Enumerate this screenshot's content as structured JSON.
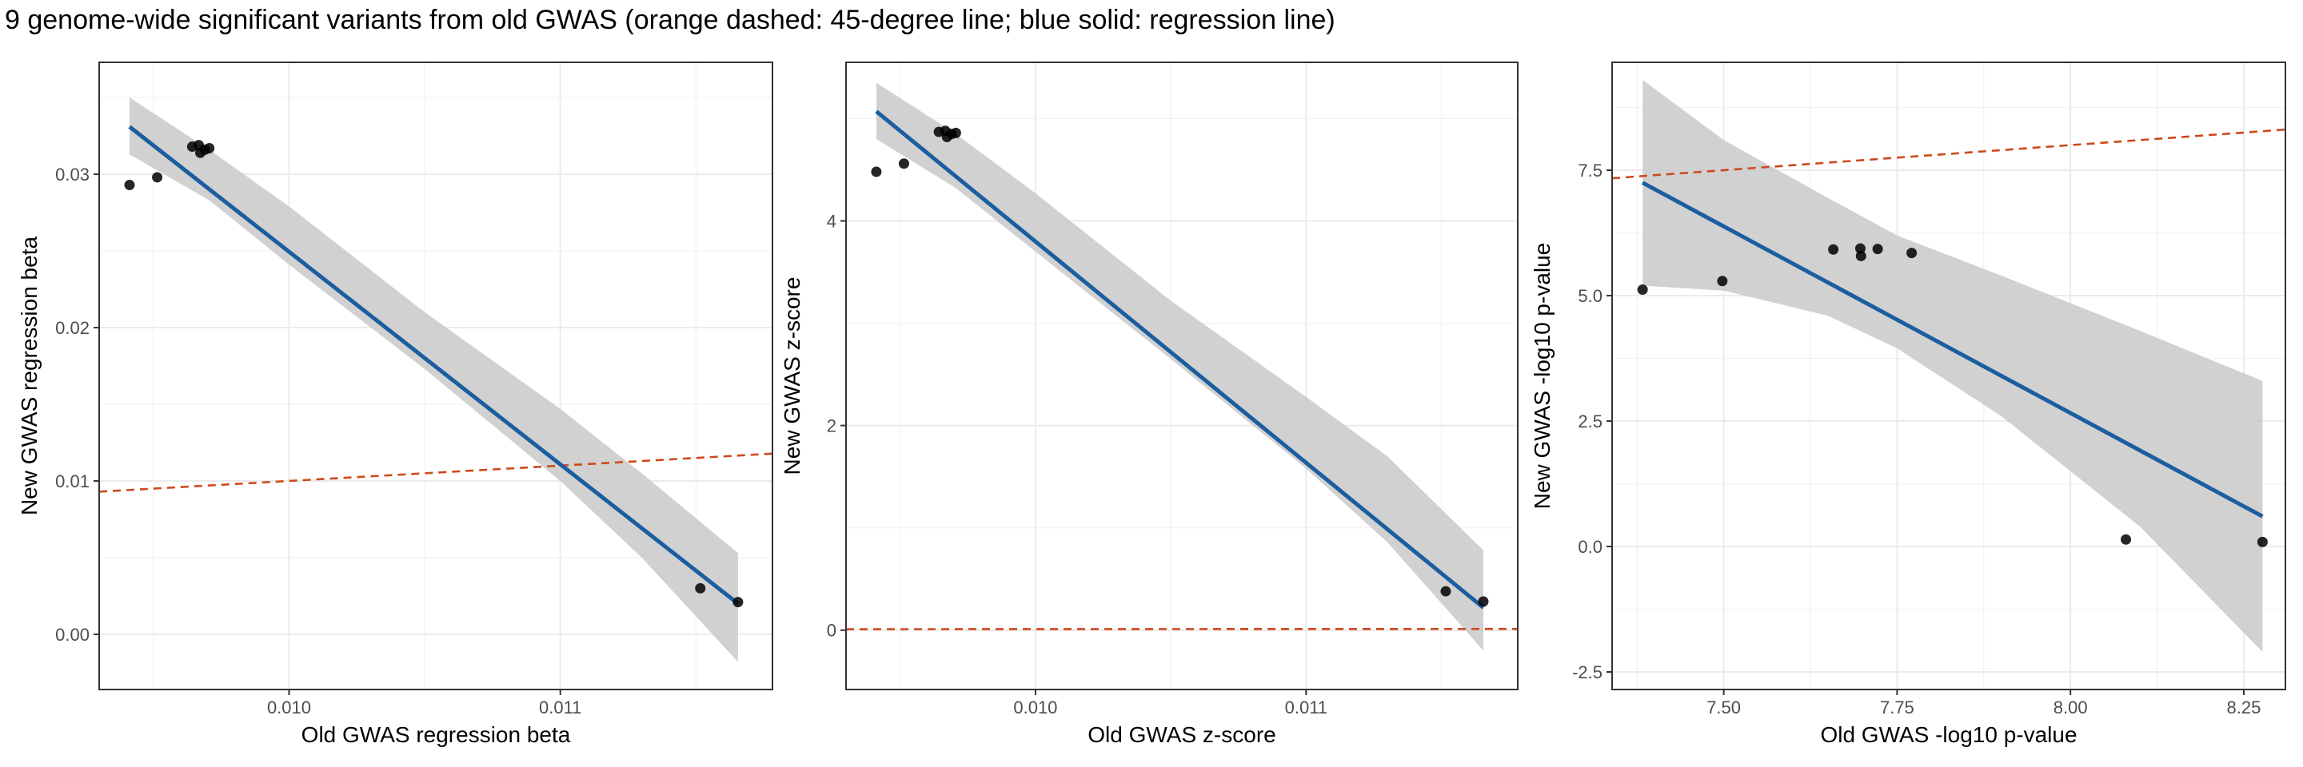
{
  "title": "9 genome-wide significant variants from old GWAS (orange dashed: 45-degree line; blue solid: regression line)",
  "colors": {
    "regression_line": "#1b5ea0",
    "identity_line": "#cc4a1a",
    "confidence_band": "#cccccc",
    "points": "#000000",
    "grid": "#ebebeb",
    "panel_border": "#333333"
  },
  "chart_data": [
    {
      "type": "scatter",
      "xlabel": "Old GWAS regression beta",
      "ylabel": "New GWAS regression beta",
      "xlim": [
        0.0093,
        0.011782
      ],
      "ylim": [
        -0.0036,
        0.0373
      ],
      "xticks": [
        0.01,
        0.011
      ],
      "xtick_labels": [
        "0.010",
        "0.011"
      ],
      "yticks": [
        0.0,
        0.01,
        0.02,
        0.03
      ],
      "ytick_labels": [
        "0.00",
        "0.01",
        "0.02",
        "0.03"
      ],
      "grid": true,
      "legend": "none",
      "points": [
        [
          0.009412,
          0.0293
        ],
        [
          0.009514,
          0.0298
        ],
        [
          0.009643,
          0.0318
        ],
        [
          0.009667,
          0.0319
        ],
        [
          0.009673,
          0.0314
        ],
        [
          0.00969,
          0.0316
        ],
        [
          0.009706,
          0.0317
        ],
        [
          0.011516,
          0.003
        ],
        [
          0.011655,
          0.0021
        ]
      ],
      "regression": {
        "x": [
          0.009412,
          0.011655
        ],
        "y": [
          0.0331,
          0.002
        ]
      },
      "confidence_band": {
        "x": [
          0.009412,
          0.009706,
          0.01,
          0.0105,
          0.011,
          0.0113,
          0.011655
        ],
        "lower": [
          0.0313,
          0.0283,
          0.0241,
          0.0173,
          0.01,
          0.005,
          -0.0018
        ],
        "upper": [
          0.035,
          0.0316,
          0.0279,
          0.021,
          0.0147,
          0.0105,
          0.0053
        ]
      },
      "identity_line": {
        "x": [
          0.0093,
          0.011782
        ],
        "y": [
          0.0093,
          0.011782
        ]
      }
    },
    {
      "type": "scatter",
      "xlabel": "Old GWAS z-score",
      "ylabel": "New GWAS z-score",
      "xlim": [
        0.0093,
        0.011782
      ],
      "ylim": [
        -0.58,
        5.55
      ],
      "xticks": [
        0.01,
        0.011
      ],
      "xtick_labels": [
        "0.010",
        "0.011"
      ],
      "yticks": [
        0,
        2,
        4
      ],
      "ytick_labels": [
        "0",
        "2",
        "4"
      ],
      "grid": true,
      "legend": "none",
      "points": [
        [
          0.009412,
          4.48
        ],
        [
          0.009514,
          4.56
        ],
        [
          0.009643,
          4.87
        ],
        [
          0.009667,
          4.88
        ],
        [
          0.009673,
          4.82
        ],
        [
          0.00969,
          4.85
        ],
        [
          0.009706,
          4.86
        ],
        [
          0.011516,
          0.38
        ],
        [
          0.011655,
          0.28
        ]
      ],
      "regression": {
        "x": [
          0.009412,
          0.011655
        ],
        "y": [
          5.07,
          0.22
        ]
      },
      "confidence_band": {
        "x": [
          0.009412,
          0.009706,
          0.01,
          0.0105,
          0.011,
          0.0113,
          0.011655
        ],
        "lower": [
          4.8,
          4.32,
          3.7,
          2.65,
          1.58,
          0.86,
          -0.2
        ],
        "upper": [
          5.35,
          4.85,
          4.27,
          3.22,
          2.28,
          1.7,
          0.78
        ]
      },
      "identity_line": {
        "x": [
          0.0093,
          0.011782
        ],
        "y": [
          0.0093,
          0.011782
        ]
      }
    },
    {
      "type": "scatter",
      "xlabel": "Old GWAS -log10 p-value",
      "ylabel": "New GWAS -log10 p-value",
      "xlim": [
        7.339,
        8.31
      ],
      "ylim": [
        -2.85,
        9.65
      ],
      "xticks": [
        7.5,
        7.75,
        8.0,
        8.25
      ],
      "xtick_labels": [
        "7.50",
        "7.75",
        "8.00",
        "8.25"
      ],
      "yticks": [
        -2.5,
        0.0,
        2.5,
        5.0,
        7.5
      ],
      "ytick_labels": [
        "-2.5",
        "0.0",
        "2.5",
        "5.0",
        "7.5"
      ],
      "grid": true,
      "legend": "none",
      "points": [
        [
          7.383,
          5.12
        ],
        [
          7.498,
          5.29
        ],
        [
          7.658,
          5.92
        ],
        [
          7.697,
          5.94
        ],
        [
          7.698,
          5.79
        ],
        [
          7.722,
          5.93
        ],
        [
          7.771,
          5.85
        ],
        [
          8.08,
          0.14
        ],
        [
          8.277,
          0.09
        ]
      ],
      "regression": {
        "x": [
          7.383,
          8.277
        ],
        "y": [
          7.25,
          0.6
        ]
      },
      "confidence_band": {
        "x": [
          7.383,
          7.5,
          7.65,
          7.75,
          7.9,
          8.1,
          8.277
        ],
        "lower": [
          5.2,
          5.1,
          4.6,
          3.95,
          2.6,
          0.4,
          -2.1
        ],
        "upper": [
          9.3,
          8.1,
          6.95,
          6.2,
          5.4,
          4.3,
          3.3
        ]
      },
      "identity_line": {
        "x": [
          7.339,
          8.31
        ],
        "y": [
          7.339,
          8.31
        ]
      }
    }
  ]
}
